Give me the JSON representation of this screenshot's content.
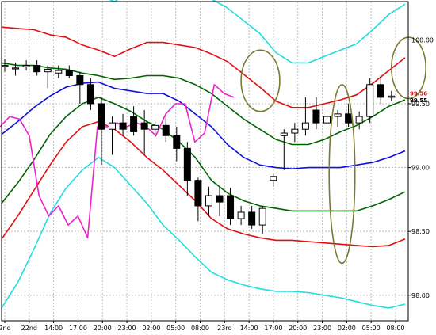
{
  "chart_data": {
    "type": "line",
    "title": "",
    "xlabel": "",
    "ylabel": "",
    "ylim": [
      97.8,
      100.3
    ],
    "x_tick_labels": [
      "2nd",
      "22nd",
      "14:00",
      "17:00",
      "20:00",
      "23:00",
      "02:00",
      "05:00",
      "08:00",
      "23rd",
      "14:00",
      "17:00",
      "20:00",
      "23:00",
      "02:00",
      "05:00",
      "08:00"
    ],
    "y_tick_labels": [
      "100.00",
      "99.50",
      "99.00",
      "98.50",
      "98.00"
    ],
    "y_tick_values": [
      100.0,
      99.5,
      99.0,
      98.5,
      98.0
    ],
    "current_price": {
      "label": "99.55",
      "value": 99.55
    },
    "price_label_secondary": {
      "label": "99.56",
      "value": 99.56
    },
    "grid": true,
    "colors": {
      "band_outer": "#22dddd",
      "band_mid": "#e01010",
      "band_inner": "#006400",
      "moving_average": "#1010e0",
      "lagging_span": "#ee22cc",
      "annotation_circle": "#7a7a30",
      "grid": "#bfbfbf",
      "price_label_red": "#dd0000"
    },
    "series": [
      {
        "key": "upper2",
        "color_key": "band_outer",
        "values": [
          100.55,
          100.53,
          100.53,
          100.47,
          100.45,
          100.38,
          100.35,
          100.3,
          100.38,
          100.42,
          100.42,
          100.4,
          100.38,
          100.32,
          100.25,
          100.15,
          100.05,
          99.9,
          99.82,
          99.82,
          99.87,
          99.92,
          99.97,
          100.08,
          100.2,
          100.28
        ]
      },
      {
        "key": "upper1",
        "color_key": "band_mid",
        "values": [
          100.1,
          100.09,
          100.08,
          100.04,
          100.02,
          99.96,
          99.92,
          99.87,
          99.93,
          99.98,
          99.98,
          99.96,
          99.94,
          99.89,
          99.83,
          99.73,
          99.63,
          99.52,
          99.47,
          99.47,
          99.5,
          99.53,
          99.57,
          99.66,
          99.76,
          99.86
        ]
      },
      {
        "key": "upper_inner",
        "color_key": "band_inner",
        "values": [
          99.82,
          99.8,
          99.8,
          99.78,
          99.77,
          99.74,
          99.72,
          99.69,
          99.7,
          99.72,
          99.72,
          99.7,
          99.65,
          99.58,
          99.48,
          99.38,
          99.3,
          99.22,
          99.18,
          99.18,
          99.22,
          99.28,
          99.33,
          99.4,
          99.48,
          99.53
        ]
      },
      {
        "key": "ma",
        "color_key": "moving_average",
        "values": [
          99.26,
          99.36,
          99.47,
          99.56,
          99.63,
          99.66,
          99.67,
          99.62,
          99.6,
          99.58,
          99.58,
          99.52,
          99.42,
          99.32,
          99.18,
          99.08,
          99.02,
          99.0,
          98.99,
          99.0,
          99.0,
          99.0,
          99.02,
          99.04,
          99.08,
          99.13
        ]
      },
      {
        "key": "lower_inner",
        "color_key": "band_inner",
        "values": [
          98.72,
          98.88,
          99.06,
          99.26,
          99.4,
          99.5,
          99.55,
          99.5,
          99.44,
          99.36,
          99.3,
          99.2,
          99.08,
          98.9,
          98.8,
          98.74,
          98.7,
          98.68,
          98.66,
          98.66,
          98.66,
          98.66,
          98.66,
          98.7,
          98.75,
          98.81
        ]
      },
      {
        "key": "lower1",
        "color_key": "band_mid",
        "values": [
          98.44,
          98.62,
          98.82,
          99.02,
          99.2,
          99.32,
          99.36,
          99.3,
          99.2,
          99.08,
          98.98,
          98.86,
          98.74,
          98.6,
          98.52,
          98.48,
          98.45,
          98.43,
          98.43,
          98.42,
          98.41,
          98.4,
          98.39,
          98.38,
          98.39,
          98.44
        ]
      },
      {
        "key": "lower2",
        "color_key": "band_outer",
        "values": [
          97.9,
          98.1,
          98.36,
          98.64,
          98.84,
          98.98,
          99.08,
          99.0,
          98.86,
          98.72,
          98.55,
          98.43,
          98.3,
          98.18,
          98.12,
          98.08,
          98.05,
          98.03,
          98.03,
          98.02,
          98.0,
          97.98,
          97.95,
          97.92,
          97.9,
          97.93
        ]
      },
      {
        "key": "lagging",
        "color_key": "lagging_span",
        "values": [
          99.32,
          99.4,
          99.38,
          99.25,
          98.78,
          98.62,
          98.7,
          98.55,
          98.62,
          98.45,
          99.32,
          99.32,
          99.35,
          99.32,
          99.35,
          99.32,
          99.25,
          99.42,
          99.5,
          99.5,
          99.2,
          99.27,
          99.65,
          99.58,
          99.55
        ]
      }
    ],
    "candles": [
      {
        "o": 99.8,
        "h": 99.85,
        "l": 99.75,
        "c": 99.8
      },
      {
        "o": 99.78,
        "h": 99.82,
        "l": 99.72,
        "c": 99.78
      },
      {
        "o": 99.79,
        "h": 99.84,
        "l": 99.76,
        "c": 99.8
      },
      {
        "o": 99.8,
        "h": 99.84,
        "l": 99.72,
        "c": 99.75
      },
      {
        "o": 99.75,
        "h": 99.8,
        "l": 99.62,
        "c": 99.77
      },
      {
        "o": 99.74,
        "h": 99.8,
        "l": 99.7,
        "c": 99.76
      },
      {
        "o": 99.76,
        "h": 99.8,
        "l": 99.7,
        "c": 99.72
      },
      {
        "o": 99.72,
        "h": 99.75,
        "l": 99.5,
        "c": 99.65
      },
      {
        "o": 99.65,
        "h": 99.7,
        "l": 99.45,
        "c": 99.5
      },
      {
        "o": 99.5,
        "h": 99.55,
        "l": 99.02,
        "c": 99.3
      },
      {
        "o": 99.3,
        "h": 99.4,
        "l": 99.1,
        "c": 99.35
      },
      {
        "o": 99.35,
        "h": 99.42,
        "l": 99.25,
        "c": 99.3
      },
      {
        "o": 99.4,
        "h": 99.48,
        "l": 99.25,
        "c": 99.28
      },
      {
        "o": 99.35,
        "h": 99.45,
        "l": 99.1,
        "c": 99.3
      },
      {
        "o": 99.3,
        "h": 99.36,
        "l": 99.24,
        "c": 99.33
      },
      {
        "o": 99.33,
        "h": 99.4,
        "l": 99.2,
        "c": 99.25
      },
      {
        "o": 99.25,
        "h": 99.32,
        "l": 99.05,
        "c": 99.15
      },
      {
        "o": 99.15,
        "h": 99.2,
        "l": 98.78,
        "c": 98.9
      },
      {
        "o": 98.9,
        "h": 98.92,
        "l": 98.58,
        "c": 98.7
      },
      {
        "o": 98.7,
        "h": 98.85,
        "l": 98.62,
        "c": 98.78
      },
      {
        "o": 98.78,
        "h": 98.85,
        "l": 98.62,
        "c": 98.73
      },
      {
        "o": 98.78,
        "h": 98.84,
        "l": 98.55,
        "c": 98.6
      },
      {
        "o": 98.6,
        "h": 98.7,
        "l": 98.55,
        "c": 98.65
      },
      {
        "o": 98.65,
        "h": 98.7,
        "l": 98.52,
        "c": 98.55
      },
      {
        "o": 98.55,
        "h": 98.7,
        "l": 98.48,
        "c": 98.68
      },
      {
        "o": 98.9,
        "h": 98.95,
        "l": 98.85,
        "c": 98.93
      },
      {
        "o": 99.25,
        "h": 99.3,
        "l": 98.98,
        "c": 99.27
      },
      {
        "o": 99.27,
        "h": 99.35,
        "l": 99.2,
        "c": 99.3
      },
      {
        "o": 99.3,
        "h": 99.55,
        "l": 99.25,
        "c": 99.35
      },
      {
        "o": 99.45,
        "h": 99.55,
        "l": 99.3,
        "c": 99.35
      },
      {
        "o": 99.35,
        "h": 99.45,
        "l": 99.28,
        "c": 99.4
      },
      {
        "o": 99.4,
        "h": 99.45,
        "l": 99.32,
        "c": 99.42
      },
      {
        "o": 99.42,
        "h": 99.5,
        "l": 99.32,
        "c": 99.35
      },
      {
        "o": 99.35,
        "h": 99.44,
        "l": 99.3,
        "c": 99.4
      },
      {
        "o": 99.4,
        "h": 99.7,
        "l": 99.35,
        "c": 99.65
      },
      {
        "o": 99.65,
        "h": 99.72,
        "l": 99.5,
        "c": 99.55
      },
      {
        "o": 99.55,
        "h": 99.6,
        "l": 99.52,
        "c": 99.56
      }
    ],
    "annotations": [
      {
        "type": "ellipse",
        "cx_index": 23.8,
        "cy_value": 99.68,
        "rx_bars": 1.8,
        "ry_value": 0.24
      },
      {
        "type": "ellipse",
        "cx_index": 31.4,
        "cy_value": 98.95,
        "rx_bars": 1.2,
        "ry_value": 0.7
      },
      {
        "type": "ellipse",
        "cx_index": 37.6,
        "cy_value": 99.78,
        "rx_bars": 1.6,
        "ry_value": 0.24
      }
    ]
  }
}
